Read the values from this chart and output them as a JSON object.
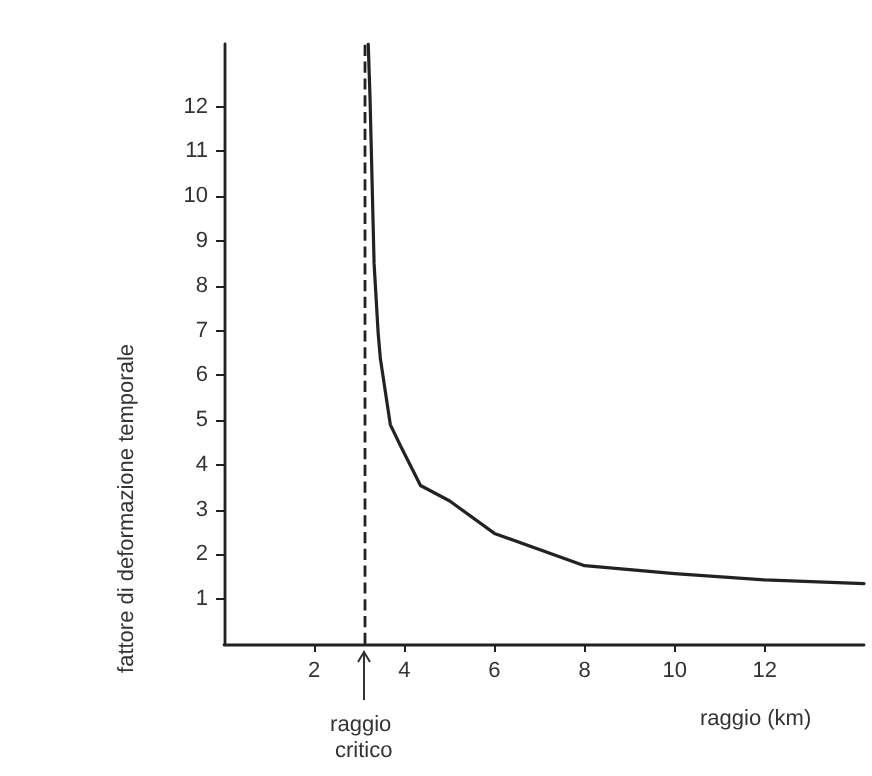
{
  "chart_data": {
    "type": "line",
    "xlabel": "raggio (km)",
    "ylabel": "fattore di deformazione temporale",
    "x": [
      3.2,
      3.24,
      3.33,
      3.42,
      3.47,
      3.69,
      3.91,
      4.36,
      5,
      6,
      8,
      10,
      12,
      14.2
    ],
    "series": [
      {
        "color": "#222222",
        "values": [
          13.4,
          12.2,
          8.5,
          6.95,
          6.37,
          4.9,
          4.44,
          3.54,
          3.2,
          2.47,
          1.75,
          1.57,
          1.43,
          1.35
        ]
      }
    ],
    "xlim": [
      0,
      14.2
    ],
    "ylim": [
      0,
      13.4
    ],
    "xticks": [
      2,
      4,
      6,
      8,
      10,
      12
    ],
    "yticks": [
      1,
      2,
      3,
      4,
      5,
      6,
      7,
      8,
      9,
      10,
      11,
      12
    ],
    "ref_lines": [
      {
        "axis": "x",
        "value": 3.1,
        "label": "raggio critico",
        "line_style": "dashed",
        "color": "#222222"
      }
    ],
    "grid": false,
    "marker": "none",
    "line_style": "solid"
  }
}
